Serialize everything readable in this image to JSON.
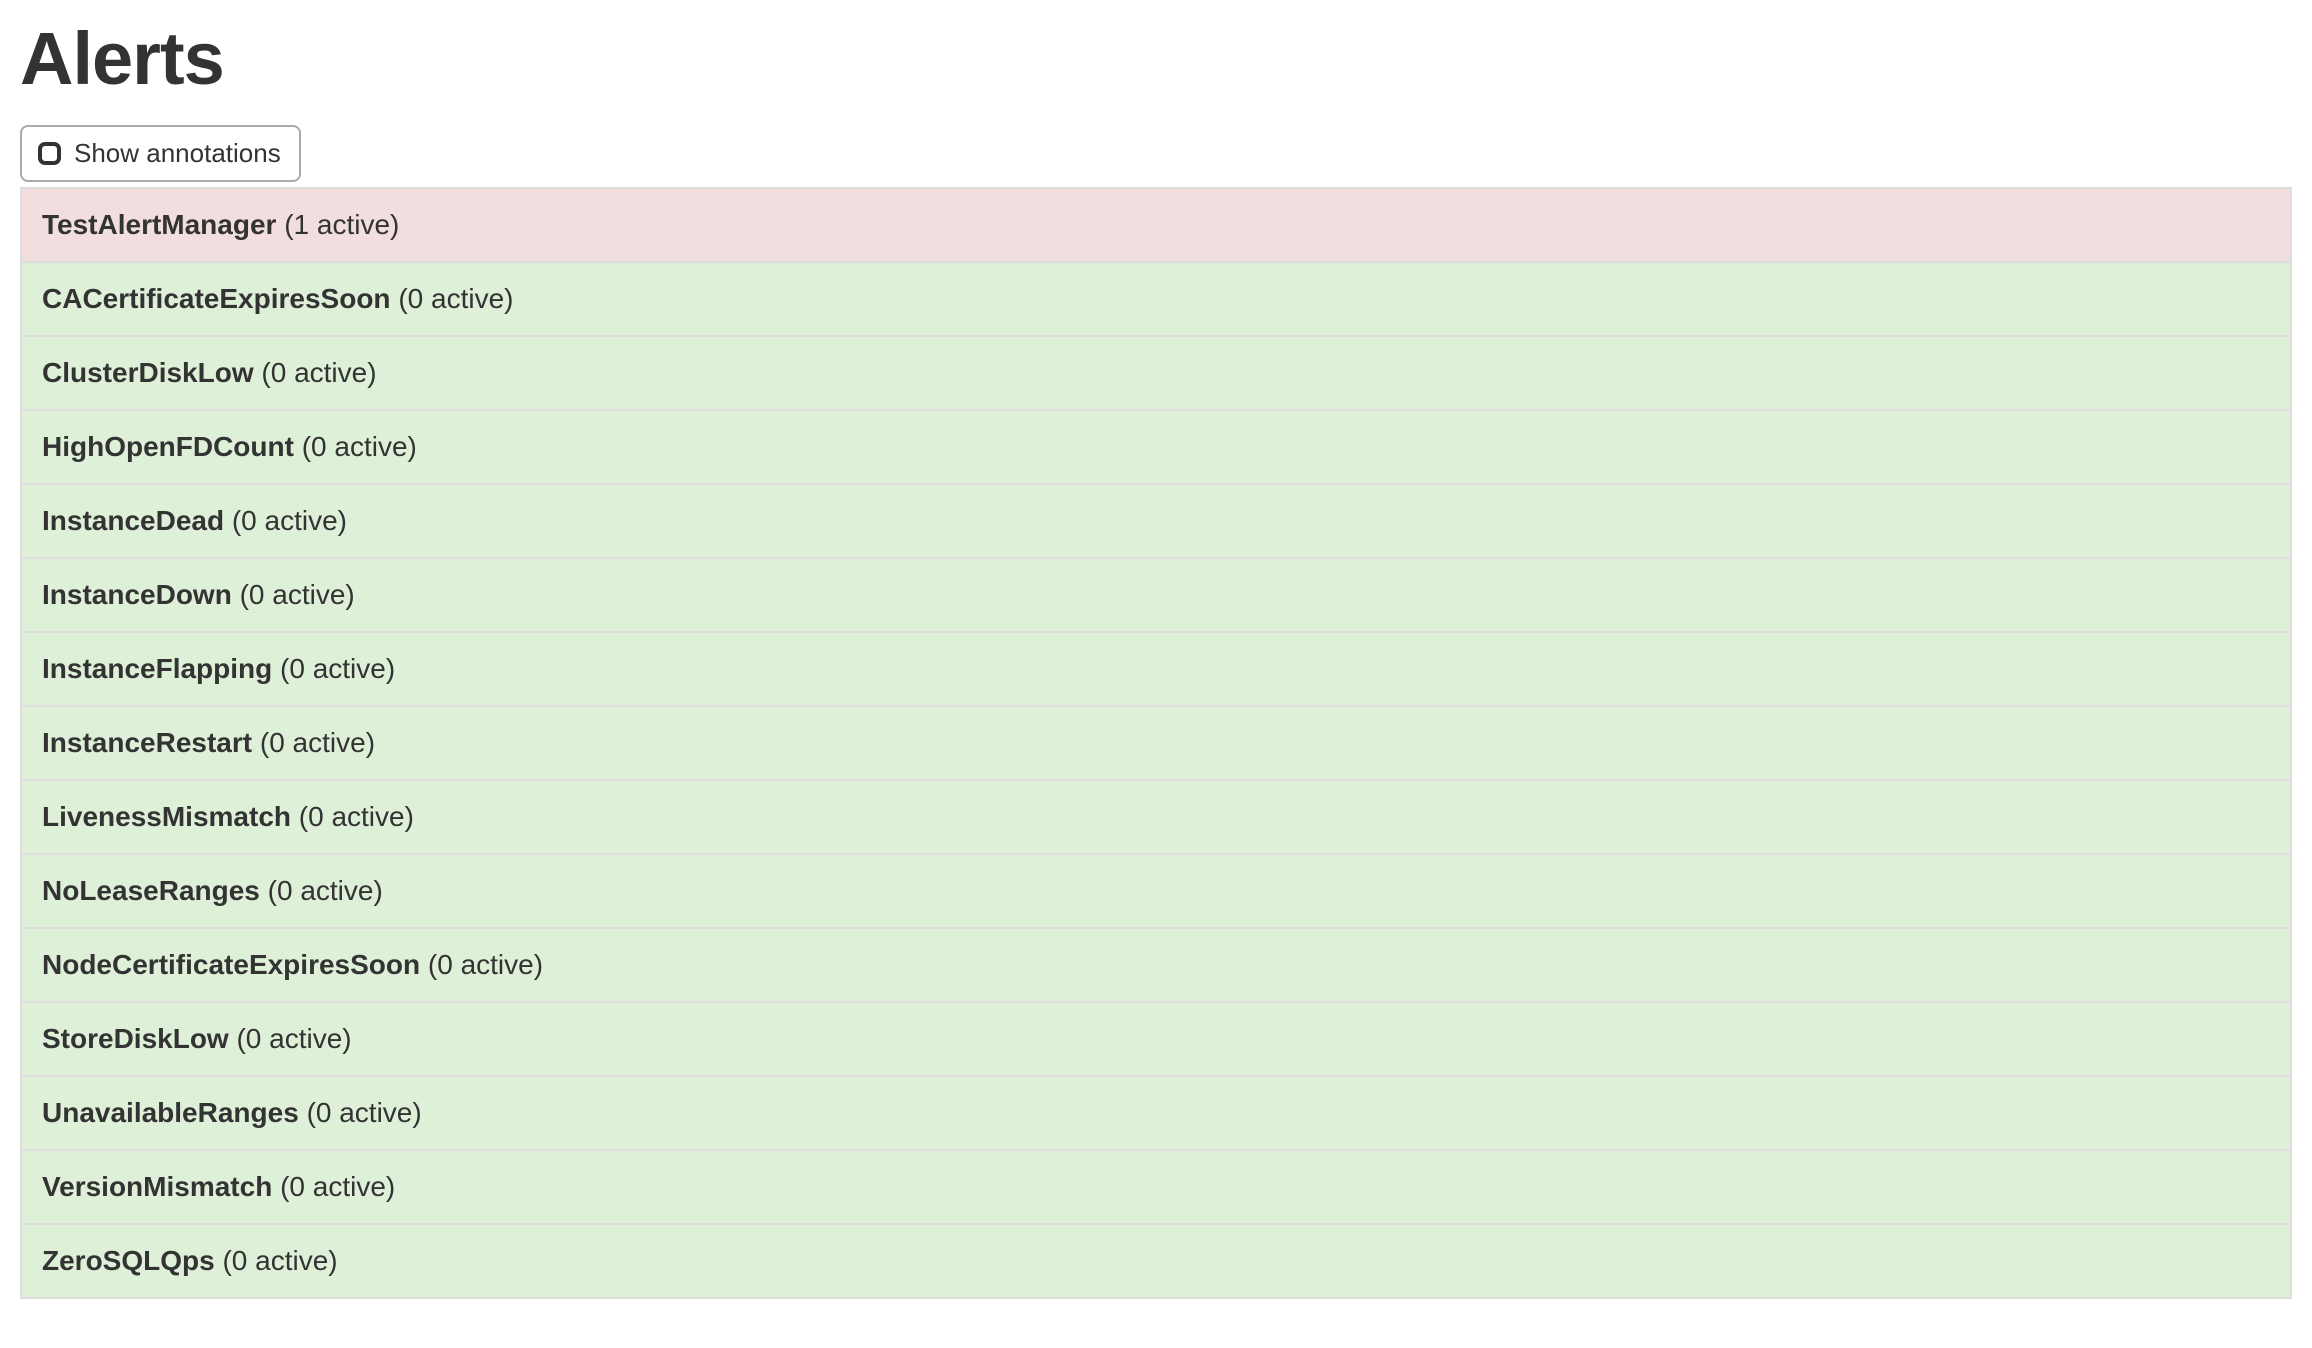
{
  "page": {
    "title": "Alerts"
  },
  "toolbar": {
    "show_annotations_label": "Show annotations",
    "checkbox_checked": false
  },
  "alerts": {
    "rows": [
      {
        "name": "TestAlertManager",
        "count_label": "(1 active)",
        "state": "firing"
      },
      {
        "name": "CACertificateExpiresSoon",
        "count_label": "(0 active)",
        "state": "inactive"
      },
      {
        "name": "ClusterDiskLow",
        "count_label": "(0 active)",
        "state": "inactive"
      },
      {
        "name": "HighOpenFDCount",
        "count_label": "(0 active)",
        "state": "inactive"
      },
      {
        "name": "InstanceDead",
        "count_label": "(0 active)",
        "state": "inactive"
      },
      {
        "name": "InstanceDown",
        "count_label": "(0 active)",
        "state": "inactive"
      },
      {
        "name": "InstanceFlapping",
        "count_label": "(0 active)",
        "state": "inactive"
      },
      {
        "name": "InstanceRestart",
        "count_label": "(0 active)",
        "state": "inactive"
      },
      {
        "name": "LivenessMismatch",
        "count_label": "(0 active)",
        "state": "inactive"
      },
      {
        "name": "NoLeaseRanges",
        "count_label": "(0 active)",
        "state": "inactive"
      },
      {
        "name": "NodeCertificateExpiresSoon",
        "count_label": "(0 active)",
        "state": "inactive"
      },
      {
        "name": "StoreDiskLow",
        "count_label": "(0 active)",
        "state": "inactive"
      },
      {
        "name": "UnavailableRanges",
        "count_label": "(0 active)",
        "state": "inactive"
      },
      {
        "name": "VersionMismatch",
        "count_label": "(0 active)",
        "state": "inactive"
      },
      {
        "name": "ZeroSQLQps",
        "count_label": "(0 active)",
        "state": "inactive"
      }
    ]
  },
  "colors": {
    "firing_row_bg": "#f2dede",
    "inactive_row_bg": "#dff0d8",
    "table_border": "#dddddd",
    "text": "#333333",
    "button_border": "#aaaaaa"
  }
}
